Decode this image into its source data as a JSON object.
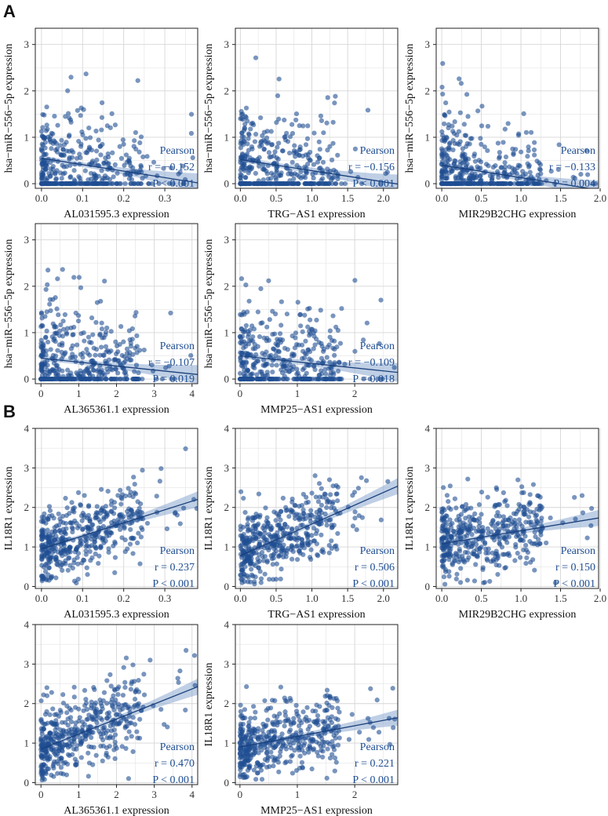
{
  "colors": {
    "point": "#1f4e92",
    "line": "#1a3f7a",
    "band": "#8aa7d0",
    "grid": "#e3e3e3",
    "annotation": "#1f4e92"
  },
  "panels": [
    {
      "label": "A"
    },
    {
      "label": "B"
    }
  ],
  "chart_data": [
    {
      "type": "scatter",
      "panel": "A",
      "title": "",
      "xlabel": "AL031595.3 expression",
      "ylabel": "hsa−miR−556−5p expression",
      "xlim": [
        -0.015,
        0.38
      ],
      "ylim": [
        -0.1,
        3.35
      ],
      "xticks": [
        0,
        0.1,
        0.2,
        0.3
      ],
      "xtick_labels": [
        "0.0",
        "0.1",
        "0.2",
        "0.3"
      ],
      "yticks": [
        0,
        1,
        2,
        3
      ],
      "ytick_labels": [
        "0",
        "1",
        "2",
        "3"
      ],
      "fit": {
        "slope": -1.4,
        "intercept": 0.55,
        "x_range": [
          0,
          0.38
        ]
      },
      "annotation": [
        "Pearson",
        "r = −0.152",
        "P < 0.001"
      ],
      "n_points": 420,
      "x_max": 0.38,
      "zero_fraction": 0.35
    },
    {
      "type": "scatter",
      "panel": "A",
      "title": "",
      "xlabel": "TRG−AS1 expression",
      "ylabel": "hsa−miR−556−5p expression",
      "xlim": [
        -0.07,
        2.2
      ],
      "ylim": [
        -0.1,
        3.35
      ],
      "xticks": [
        0,
        0.5,
        1,
        1.5,
        2
      ],
      "xtick_labels": [
        "0.0",
        "0.5",
        "1.0",
        "1.5",
        "2.0"
      ],
      "yticks": [
        0,
        1,
        2,
        3
      ],
      "ytick_labels": [
        "0",
        "1",
        "2",
        "3"
      ],
      "fit": {
        "slope": -0.24,
        "intercept": 0.52,
        "x_range": [
          0,
          2.2
        ]
      },
      "annotation": [
        "Pearson",
        "r = −0.156",
        "P < 0.001"
      ],
      "n_points": 420,
      "x_max": 2.1,
      "zero_fraction": 0.35
    },
    {
      "type": "scatter",
      "panel": "A",
      "title": "",
      "xlabel": "MIR29B2CHG expression",
      "ylabel": "hsa−miR−556−5p expression",
      "xlim": [
        -0.07,
        1.98
      ],
      "ylim": [
        -0.1,
        3.35
      ],
      "xticks": [
        0,
        0.5,
        1,
        1.5,
        2
      ],
      "xtick_labels": [
        "0.0",
        "0.5",
        "1.0",
        "1.5",
        "2.0"
      ],
      "yticks": [
        0,
        1,
        2,
        3
      ],
      "ytick_labels": [
        "0",
        "1",
        "2",
        "3"
      ],
      "fit": {
        "slope": -0.27,
        "intercept": 0.4,
        "x_range": [
          0,
          1.98
        ]
      },
      "annotation": [
        "Pearson",
        "r = −0.133",
        "P = 0.004"
      ],
      "n_points": 420,
      "x_max": 1.95,
      "zero_fraction": 0.35
    },
    {
      "type": "scatter",
      "panel": "A",
      "title": "",
      "xlabel": "AL365361.1 expression",
      "ylabel": "hsa−miR−556−5p expression",
      "xlim": [
        -0.15,
        4.15
      ],
      "ylim": [
        -0.1,
        3.35
      ],
      "xticks": [
        0,
        1,
        2,
        3,
        4
      ],
      "xtick_labels": [
        "0",
        "1",
        "2",
        "3",
        "4"
      ],
      "yticks": [
        0,
        1,
        2,
        3
      ],
      "ytick_labels": [
        "0",
        "1",
        "2",
        "3"
      ],
      "fit": {
        "slope": -0.085,
        "intercept": 0.45,
        "x_range": [
          0,
          4.15
        ]
      },
      "annotation": [
        "Pearson",
        "r = −0.107",
        "P = 0.019"
      ],
      "n_points": 420,
      "x_max": 4.0,
      "zero_fraction": 0.35
    },
    {
      "type": "scatter",
      "panel": "A",
      "title": "",
      "xlabel": "MMP25−AS1 expression",
      "ylabel": "hsa−miR−556−5p expression",
      "xlim": [
        -0.08,
        2.75
      ],
      "ylim": [
        -0.1,
        3.35
      ],
      "xticks": [
        0,
        1,
        2
      ],
      "xtick_labels": [
        "0",
        "1",
        "2"
      ],
      "yticks": [
        0,
        1,
        2,
        3
      ],
      "ytick_labels": [
        "0",
        "1",
        "2",
        "3"
      ],
      "fit": {
        "slope": -0.13,
        "intercept": 0.5,
        "x_range": [
          0,
          2.75
        ]
      },
      "annotation": [
        "Pearson",
        "r = −0.109",
        "P = 0.018"
      ],
      "n_points": 420,
      "x_max": 2.7,
      "zero_fraction": 0.35
    },
    {
      "type": "scatter",
      "panel": "B",
      "title": "",
      "xlabel": "AL031595.3 expression",
      "ylabel": "IL18R1 expression",
      "xlim": [
        -0.015,
        0.38
      ],
      "ylim": [
        -0.05,
        4
      ],
      "xticks": [
        0,
        0.1,
        0.2,
        0.3
      ],
      "xtick_labels": [
        "0.0",
        "0.1",
        "0.2",
        "0.3"
      ],
      "yticks": [
        0,
        1,
        2,
        3,
        4
      ],
      "ytick_labels": [
        "0",
        "1",
        "2",
        "3",
        "4"
      ],
      "fit": {
        "slope": 3.3,
        "intercept": 0.95,
        "x_range": [
          0,
          0.38
        ]
      },
      "annotation": [
        "Pearson",
        "r = 0.237",
        "P < 0.001"
      ],
      "n_points": 460,
      "x_max": 0.38,
      "zero_fraction": 0
    },
    {
      "type": "scatter",
      "panel": "B",
      "title": "",
      "xlabel": "TRG−AS1 expression",
      "ylabel": "IL18R1 expression",
      "xlim": [
        -0.07,
        2.2
      ],
      "ylim": [
        -0.05,
        4
      ],
      "xticks": [
        0,
        0.5,
        1,
        1.5,
        2
      ],
      "xtick_labels": [
        "0.0",
        "0.5",
        "1.0",
        "1.5",
        "2.0"
      ],
      "yticks": [
        0,
        1,
        2,
        3,
        4
      ],
      "ytick_labels": [
        "0",
        "1",
        "2",
        "3",
        "4"
      ],
      "fit": {
        "slope": 0.8,
        "intercept": 0.78,
        "x_range": [
          0,
          2.2
        ]
      },
      "annotation": [
        "Pearson",
        "r = 0.506",
        "P < 0.001"
      ],
      "n_points": 460,
      "x_max": 2.1,
      "zero_fraction": 0
    },
    {
      "type": "scatter",
      "panel": "B",
      "title": "",
      "xlabel": "MIR29B2CHG expression",
      "ylabel": "IL18R1 expression",
      "xlim": [
        -0.07,
        1.98
      ],
      "ylim": [
        -0.05,
        4
      ],
      "xticks": [
        0,
        0.5,
        1,
        1.5,
        2
      ],
      "xtick_labels": [
        "0.0",
        "0.5",
        "1.0",
        "1.5",
        "2.0"
      ],
      "yticks": [
        0,
        1,
        2,
        3,
        4
      ],
      "ytick_labels": [
        "0",
        "1",
        "2",
        "3",
        "4"
      ],
      "fit": {
        "slope": 0.33,
        "intercept": 1.08,
        "x_range": [
          0,
          1.98
        ]
      },
      "annotation": [
        "Pearson",
        "r = 0.150",
        "P < 0.001"
      ],
      "n_points": 460,
      "x_max": 1.95,
      "zero_fraction": 0
    },
    {
      "type": "scatter",
      "panel": "B",
      "title": "",
      "xlabel": "AL365361.1 expression",
      "ylabel": "",
      "xlim": [
        -0.15,
        4.15
      ],
      "ylim": [
        -0.05,
        4
      ],
      "xticks": [
        0,
        1,
        2,
        3,
        4
      ],
      "xtick_labels": [
        "0",
        "1",
        "2",
        "3",
        "4"
      ],
      "yticks": [
        0,
        1,
        2,
        3,
        4
      ],
      "ytick_labels": [
        "0",
        "1",
        "2",
        "3",
        "4"
      ],
      "fit": {
        "slope": 0.38,
        "intercept": 0.85,
        "x_range": [
          0,
          4.15
        ]
      },
      "annotation": [
        "Pearson",
        "r = 0.470",
        "P < 0.001"
      ],
      "n_points": 460,
      "x_max": 4.1,
      "zero_fraction": 0
    },
    {
      "type": "scatter",
      "panel": "B",
      "title": "",
      "xlabel": "MMP25−AS1 expression",
      "ylabel": "IL18R1 expression",
      "xlim": [
        -0.08,
        2.75
      ],
      "ylim": [
        -0.05,
        4
      ],
      "xticks": [
        0,
        1,
        2
      ],
      "xtick_labels": [
        "0",
        "1",
        "2"
      ],
      "yticks": [
        0,
        1,
        2,
        3,
        4
      ],
      "ytick_labels": [
        "0",
        "1",
        "2",
        "3",
        "4"
      ],
      "fit": {
        "slope": 0.27,
        "intercept": 0.9,
        "x_range": [
          0,
          2.75
        ]
      },
      "annotation": [
        "Pearson",
        "r = 0.221",
        "P < 0.001"
      ],
      "n_points": 460,
      "x_max": 2.7,
      "zero_fraction": 0
    }
  ]
}
